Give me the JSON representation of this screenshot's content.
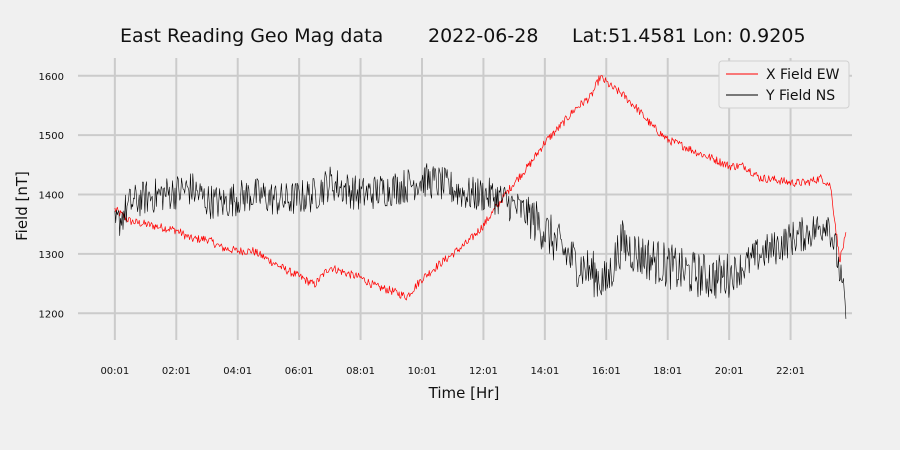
{
  "chart_data": {
    "type": "line",
    "title": {
      "name": "East Reading Geo Mag data",
      "date": "2022-06-28",
      "location": "Lat:51.4581  Lon: 0.9205"
    },
    "xlabel": "Time  [Hr]",
    "ylabel": "Field  [nT]",
    "x_ticks": [
      "00:01",
      "02:01",
      "04:01",
      "06:01",
      "08:01",
      "10:01",
      "12:01",
      "14:01",
      "16:01",
      "18:01",
      "20:01",
      "22:01"
    ],
    "y_ticks": [
      1200,
      1300,
      1400,
      1500,
      1600
    ],
    "xlim": [
      -1.2,
      24.0
    ],
    "ylim": [
      1155,
      1630
    ],
    "grid": true,
    "legend_position": "top-right",
    "series": [
      {
        "name": "X Field EW",
        "color": "#ff0000",
        "noise": 7,
        "x": [
          0.0,
          0.5,
          1.0,
          1.5,
          2.0,
          2.5,
          3.0,
          3.5,
          4.0,
          4.5,
          5.0,
          5.5,
          6.0,
          6.5,
          7.0,
          7.5,
          8.0,
          8.5,
          9.0,
          9.5,
          10.0,
          10.5,
          11.0,
          11.5,
          12.0,
          12.5,
          13.0,
          13.5,
          14.0,
          14.5,
          15.0,
          15.5,
          15.8,
          16.2,
          16.5,
          17.0,
          17.5,
          18.0,
          18.5,
          19.0,
          19.5,
          20.0,
          20.5,
          21.0,
          21.5,
          22.0,
          22.5,
          23.0,
          23.3,
          23.6,
          23.8
        ],
        "values": [
          1375,
          1355,
          1350,
          1345,
          1340,
          1325,
          1325,
          1310,
          1305,
          1305,
          1290,
          1275,
          1262,
          1248,
          1278,
          1268,
          1260,
          1245,
          1238,
          1228,
          1258,
          1280,
          1300,
          1320,
          1348,
          1385,
          1420,
          1450,
          1488,
          1515,
          1545,
          1565,
          1598,
          1580,
          1570,
          1545,
          1515,
          1492,
          1482,
          1470,
          1460,
          1448,
          1448,
          1428,
          1425,
          1420,
          1420,
          1428,
          1415,
          1290,
          1330
        ]
      },
      {
        "name": "Y Field NS",
        "color": "#000000",
        "noise": 30,
        "x": [
          0.0,
          0.5,
          1.0,
          1.5,
          2.0,
          2.5,
          3.0,
          3.5,
          4.0,
          4.5,
          5.0,
          5.5,
          6.0,
          6.5,
          7.0,
          7.5,
          8.0,
          8.5,
          9.0,
          9.5,
          10.0,
          10.5,
          11.0,
          11.5,
          12.0,
          12.5,
          13.0,
          13.5,
          14.0,
          14.5,
          15.0,
          15.5,
          16.0,
          16.5,
          17.0,
          17.5,
          18.0,
          18.5,
          19.0,
          19.5,
          20.0,
          20.5,
          21.0,
          21.5,
          22.0,
          22.5,
          23.0,
          23.2,
          23.5,
          23.8
        ],
        "values": [
          1345,
          1385,
          1395,
          1400,
          1405,
          1410,
          1390,
          1385,
          1395,
          1400,
          1395,
          1390,
          1395,
          1400,
          1420,
          1410,
          1400,
          1405,
          1410,
          1415,
          1425,
          1420,
          1410,
          1400,
          1400,
          1395,
          1380,
          1365,
          1340,
          1310,
          1285,
          1270,
          1250,
          1320,
          1300,
          1290,
          1280,
          1270,
          1265,
          1260,
          1265,
          1280,
          1300,
          1310,
          1325,
          1335,
          1345,
          1360,
          1300,
          1205
        ]
      }
    ]
  }
}
